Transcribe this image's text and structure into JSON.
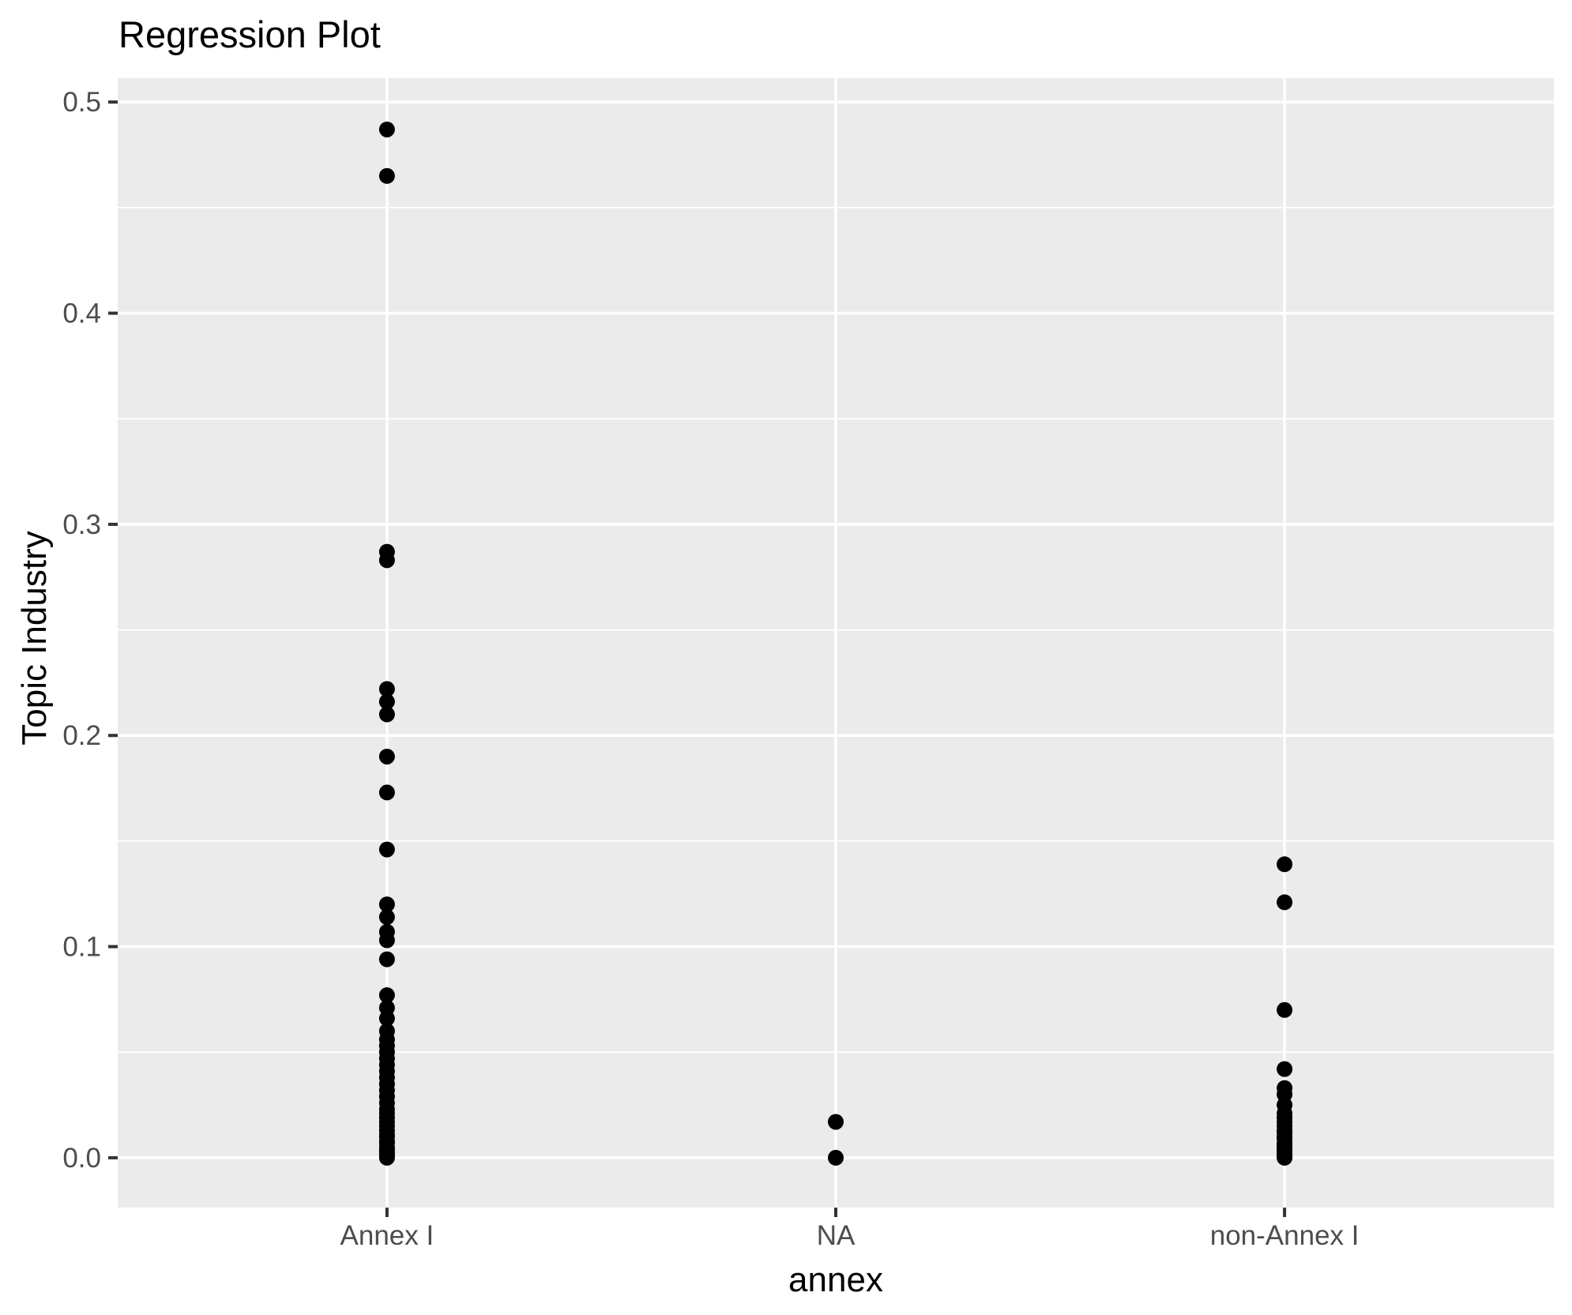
{
  "window": {
    "title": "Regression Plot"
  },
  "chart": {
    "title": "Regression Plot",
    "x_axis_title": "annex",
    "y_axis_title": "Topic Industry"
  },
  "chart_data": {
    "type": "scatter",
    "title": "Regression Plot",
    "xlabel": "annex",
    "ylabel": "Topic Industry",
    "categories": [
      "Annex I",
      "NA",
      "non-Annex I"
    ],
    "y_ticks": [
      0.0,
      0.1,
      0.2,
      0.3,
      0.4,
      0.5
    ],
    "y_tick_labels": [
      "0.0",
      "0.1",
      "0.2",
      "0.3",
      "0.4",
      "0.5"
    ],
    "y_minor_ticks": [
      0.05,
      0.15,
      0.25,
      0.35,
      0.45
    ],
    "ylim": [
      -0.0236,
      0.5113
    ],
    "grid": true,
    "legend": false,
    "point_radius_px": 10,
    "series": [
      {
        "name": "Annex I",
        "values": [
          0.487,
          0.465,
          0.287,
          0.283,
          0.222,
          0.216,
          0.21,
          0.19,
          0.173,
          0.146,
          0.12,
          0.114,
          0.107,
          0.103,
          0.094,
          0.077,
          0.071,
          0.066,
          0.06,
          0.056,
          0.053,
          0.05,
          0.047,
          0.044,
          0.041,
          0.038,
          0.035,
          0.032,
          0.029,
          0.026,
          0.023,
          0.021,
          0.019,
          0.017,
          0.015,
          0.013,
          0.011,
          0.01,
          0.008,
          0.007,
          0.005,
          0.004,
          0.003,
          0.002,
          0.001,
          0.0
        ]
      },
      {
        "name": "NA",
        "values": [
          0.017,
          0.0
        ]
      },
      {
        "name": "non-Annex I",
        "values": [
          0.139,
          0.121,
          0.07,
          0.042,
          0.033,
          0.03,
          0.025,
          0.021,
          0.019,
          0.017,
          0.015,
          0.013,
          0.012,
          0.01,
          0.009,
          0.007,
          0.006,
          0.005,
          0.004,
          0.003,
          0.002,
          0.001,
          0.0
        ]
      }
    ],
    "colors": {
      "panel_background": "#EBEBEB",
      "grid_line": "#FFFFFF",
      "point": "#000000",
      "axis_text": "#4D4D4D",
      "tick_mark": "#333333",
      "title_text": "#000000",
      "page_background": "#FFFFFF"
    }
  }
}
